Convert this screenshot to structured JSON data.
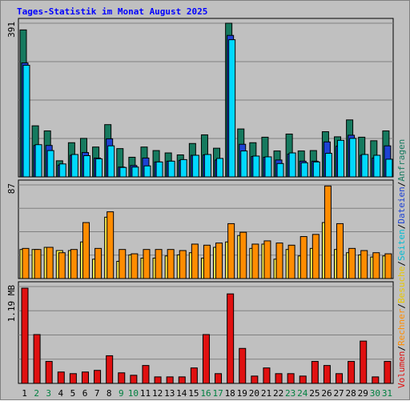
{
  "title": "Tages-Statistik im Monat August 2025",
  "chart_data": {
    "type": "bar",
    "title": "Tages-Statistik im Monat August 2025",
    "days": [
      "1",
      "2",
      "3",
      "4",
      "5",
      "6",
      "7",
      "8",
      "9",
      "10",
      "11",
      "12",
      "13",
      "14",
      "15",
      "16",
      "17",
      "18",
      "19",
      "20",
      "21",
      "22",
      "23",
      "24",
      "25",
      "26",
      "27",
      "28",
      "29",
      "30",
      "31"
    ],
    "weekend_days": [
      "2",
      "3",
      "9",
      "10",
      "16",
      "17",
      "23",
      "24",
      "30",
      "31"
    ],
    "panels": [
      {
        "id": "top",
        "axis_label": "391",
        "max": 391,
        "series": [
          {
            "name": "Anfragen",
            "color": "#167a5f",
            "values": [
              374,
              130,
              117,
              41,
              87,
              98,
              76,
              133,
              72,
              50,
              76,
              67,
              61,
              56,
              85,
              107,
              73,
              391,
              122,
              87,
              101,
              66,
              109,
              66,
              67,
              115,
              102,
              145,
              101,
              92,
              117
            ]
          },
          {
            "name": "Dateien",
            "color": "#1e42d4",
            "values": [
              290,
              80,
              80,
              30,
              55,
              62,
              48,
              97,
              25,
              29,
              48,
              38,
              40,
              42,
              55,
              56,
              43,
              360,
              83,
              52,
              50,
              43,
              58,
              40,
              40,
              89,
              78,
              106,
              55,
              48,
              79
            ]
          },
          {
            "name": "Seiten",
            "color": "#00d8ff",
            "values": [
              284,
              82,
              67,
              33,
              57,
              54,
              46,
              79,
              24,
              25,
              28,
              38,
              40,
              44,
              55,
              57,
              47,
              349,
              66,
              53,
              51,
              34,
              61,
              36,
              38,
              60,
              93,
              98,
              57,
              55,
              45
            ]
          }
        ]
      },
      {
        "id": "middle",
        "axis_label": "87",
        "max": 87,
        "series": [
          {
            "name": "Besuche",
            "color": "#fff04d",
            "values": [
              27,
              27,
              29,
              26,
              26,
              34,
              18,
              57,
              16,
              22,
              19,
              19,
              21,
              22,
              24,
              19,
              29,
              34,
              40,
              28,
              32,
              18,
              27,
              21,
              28,
              52,
              27,
              24,
              22,
              20,
              21
            ]
          },
          {
            "name": "Rechner",
            "color": "#ff8c00",
            "values": [
              28,
              27,
              29,
              24,
              27,
              52,
              28,
              62,
              27,
              23,
              27,
              27,
              27,
              26,
              32,
              31,
              33,
              51,
              43,
              32,
              35,
              33,
              31,
              39,
              41,
              86,
              51,
              28,
              26,
              24,
              23
            ]
          }
        ]
      },
      {
        "id": "bottom",
        "axis_label": "1.19 MB",
        "max": 1.19,
        "series": [
          {
            "name": "Volumen",
            "color": "#e01010",
            "values": [
              1.17,
              0.6,
              0.27,
              0.14,
              0.12,
              0.14,
              0.16,
              0.34,
              0.13,
              0.1,
              0.22,
              0.08,
              0.08,
              0.08,
              0.19,
              0.6,
              0.12,
              1.1,
              0.43,
              0.09,
              0.19,
              0.12,
              0.12,
              0.09,
              0.27,
              0.22,
              0.12,
              0.27,
              0.52,
              0.08,
              0.27
            ]
          }
        ]
      }
    ],
    "legend": [
      {
        "label": "Volumen",
        "color": "#e01010"
      },
      {
        "label": "/",
        "color": "#000000"
      },
      {
        "label": "Rechner",
        "color": "#ff8c00"
      },
      {
        "label": "/",
        "color": "#000000"
      },
      {
        "label": "Besuche",
        "color": "#e8c800"
      },
      {
        "label": "/",
        "color": "#000000"
      },
      {
        "label": "Seiten",
        "color": "#00bcd4"
      },
      {
        "label": "/",
        "color": "#000000"
      },
      {
        "label": "Dateien",
        "color": "#1e42d4"
      },
      {
        "label": "/",
        "color": "#000000"
      },
      {
        "label": "Anfragen",
        "color": "#167a5f"
      }
    ],
    "colors": {
      "weekday_label": "#000000",
      "weekend_label": "#008040",
      "plot_background": "#c0c0c0",
      "grid": "#808080"
    }
  }
}
